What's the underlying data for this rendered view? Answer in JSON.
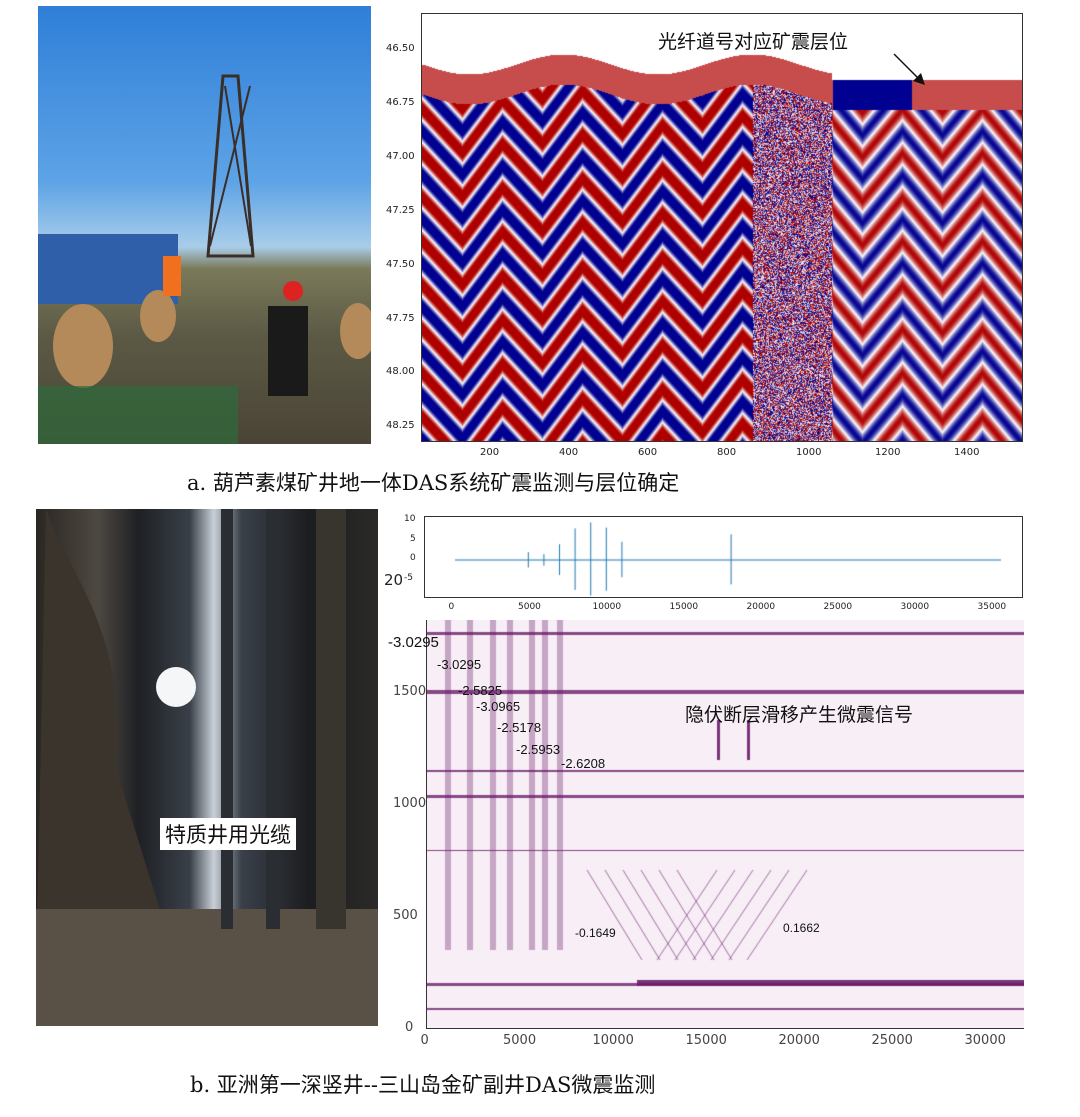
{
  "panel_a": {
    "caption": "a. 葫芦素煤矿井地一体DAS系统矿震监测与层位确定",
    "annotation": "光纤道号对应矿震层位",
    "y_ticks": [
      "46.50",
      "46.75",
      "47.00",
      "47.25",
      "47.50",
      "47.75",
      "48.00",
      "48.25"
    ],
    "x_ticks": [
      "200",
      "400",
      "600",
      "800",
      "1000",
      "1200",
      "1400"
    ],
    "colormap": [
      "#0a0a8c",
      "#ffffff",
      "#b00000"
    ]
  },
  "panel_b": {
    "caption": "b. 亚洲第一深竖井--三山岛金矿副井DAS微震监测",
    "photo_label": "特质井用光缆",
    "annotation": "隐伏断层滑移产生微震信号",
    "waveform": {
      "y_ticks": [
        "10",
        "5",
        "0",
        "-5"
      ],
      "x_ticks": [
        "0",
        "5000",
        "10000",
        "15000",
        "20000",
        "25000",
        "30000",
        "35000"
      ],
      "side_label": "20",
      "color": "#1f77b4"
    },
    "heatmap": {
      "y_ticks": [
        "1500",
        "1000",
        "500",
        "0"
      ],
      "x_ticks": [
        "0",
        "5000",
        "10000",
        "15000",
        "20000",
        "25000",
        "30000"
      ],
      "color": "#6b1d6b"
    },
    "event_labels": [
      "-3.0295",
      "-3.0295",
      "-2.5825",
      "-3.0965",
      "-2.5178",
      "-2.5953",
      "-2.6208",
      "-0.1649",
      "0.1662"
    ]
  }
}
